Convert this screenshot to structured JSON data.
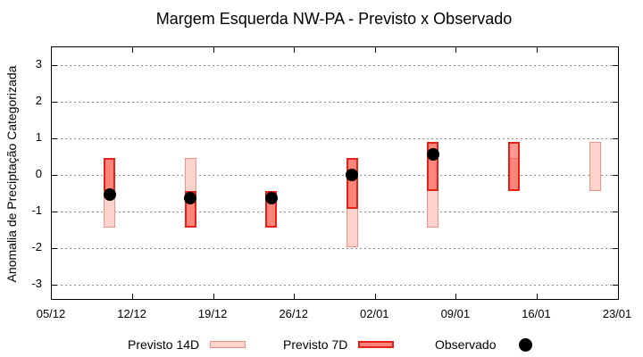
{
  "title": "Margem Esquerda NW-PA - Previsto x Observado",
  "y_axis": {
    "label": "Anomalia de Preciptação Categorizada",
    "tick_values": [
      3,
      2,
      1,
      0,
      -1,
      -2,
      -3
    ],
    "tick_labels": [
      "3",
      "2",
      "1",
      "0",
      "-1",
      "-2",
      "-3"
    ]
  },
  "x_axis": {
    "tick_labels": [
      "05/12",
      "12/12",
      "19/12",
      "26/12",
      "02/01",
      "09/01",
      "16/01",
      "23/01"
    ],
    "tick_days": [
      0,
      7,
      14,
      21,
      28,
      35,
      42,
      49
    ]
  },
  "legend": {
    "previsto14_label": "Previsto 14D",
    "previsto7_label": "Previsto 7D",
    "observado_label": "Observado"
  },
  "colors": {
    "p14_fill": "#fbd3ca",
    "p14_border": "#f0928a",
    "p7_fill": "rgba(255,70,56,0.55)",
    "p7_border": "#e62119",
    "p7_legend_fill": "#fa837b",
    "observado": "#000000",
    "grid": "#8a8a8a",
    "axis": "#000000"
  },
  "chart_data": {
    "type": "bar",
    "subtype": "range-bars-with-scatter",
    "title": "Margem Esquerda NW-PA - Previsto x Observado",
    "xlabel": "",
    "ylabel": "Anomalia de Preciptação Categorizada",
    "ylim": [
      -3.4,
      3.45
    ],
    "grid": "horizontal-dotted",
    "legend_position": "bottom",
    "x_start_date": "05/12",
    "x_end_date": "23/01",
    "categories": [
      "10/12",
      "17/12",
      "24/12",
      "31/12",
      "07/01",
      "14/01",
      "21/01"
    ],
    "category_days_from_start": [
      5,
      12,
      19,
      26,
      33,
      40,
      47
    ],
    "series": [
      {
        "name": "Previsto 14D",
        "type": "range_bar",
        "ranges": [
          [
            -1.45,
            0.45
          ],
          [
            -1.45,
            0.45
          ],
          [
            -1.45,
            -0.45
          ],
          [
            -2.0,
            0.45
          ],
          [
            -1.45,
            0.9
          ],
          [
            -0.45,
            0.45
          ],
          [
            -0.45,
            0.9
          ]
        ]
      },
      {
        "name": "Previsto 7D",
        "type": "range_bar",
        "ranges": [
          [
            -0.45,
            0.45
          ],
          [
            -1.45,
            -0.45
          ],
          [
            -1.45,
            -0.45
          ],
          [
            -0.95,
            0.45
          ],
          [
            -0.45,
            0.9
          ],
          [
            -0.45,
            0.9
          ],
          null
        ]
      },
      {
        "name": "Observado",
        "type": "scatter",
        "values": [
          -0.55,
          -0.65,
          -0.65,
          0.0,
          0.55,
          null,
          null
        ]
      }
    ]
  }
}
